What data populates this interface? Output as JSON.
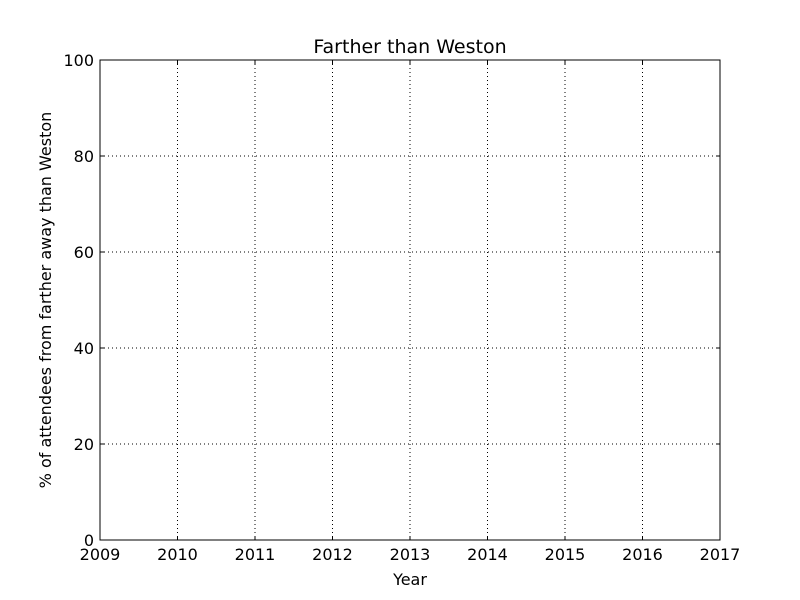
{
  "chart_data": {
    "type": "line",
    "title": "Farther than Weston",
    "xlabel": "Year",
    "ylabel": "% of attendees from farther away than Weston",
    "xlim": [
      2009,
      2017
    ],
    "ylim": [
      0,
      100
    ],
    "xticks": [
      2009,
      2010,
      2011,
      2012,
      2013,
      2014,
      2015,
      2016,
      2017
    ],
    "yticks": [
      0,
      20,
      40,
      60,
      80,
      100
    ],
    "grid": true,
    "legend": "none",
    "series": []
  }
}
